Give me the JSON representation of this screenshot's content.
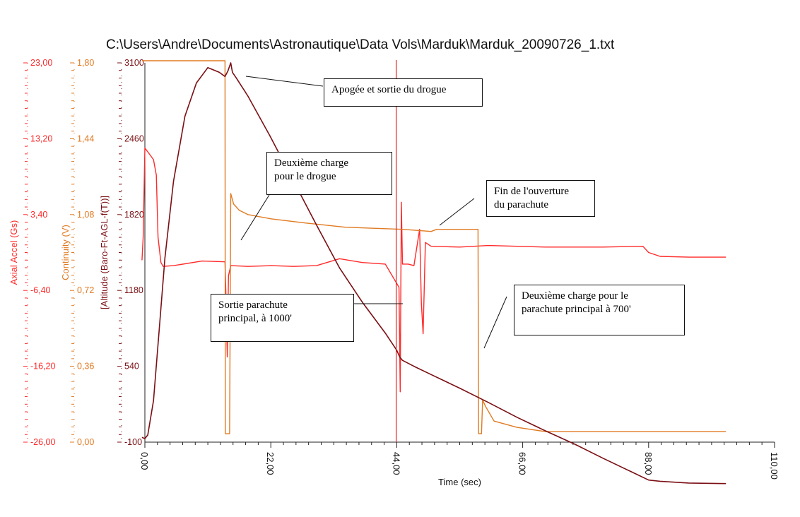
{
  "title": "C:\\Users\\Andre\\Documents\\Astronautique\\Data Vols\\Marduk\\Marduk_20090726_1.txt",
  "chart_data": {
    "type": "line",
    "title": "C:\\Users\\Andre\\Documents\\Astronautique\\Data Vols\\Marduk\\Marduk_20090726_1.txt",
    "xlabel": "Time (sec)",
    "xlim": [
      0,
      110
    ],
    "xticks": [
      "0,00",
      "22,00",
      "44,00",
      "66,00",
      "88,00",
      "110,00"
    ],
    "grid": false,
    "axes": [
      {
        "label": "Axial Accel (Gs)",
        "color": "#ff2a2a",
        "ylim": [
          -26,
          23
        ],
        "ticks": [
          "23,00",
          "13,20",
          "3,40",
          "-6,40",
          "-16,20",
          "-26,00"
        ]
      },
      {
        "label": "Continuity (V)",
        "color": "#e07a22",
        "ylim": [
          0,
          1.8
        ],
        "ticks": [
          "1,80",
          "1,44",
          "1,08",
          "0,72",
          "0,36",
          "0,00"
        ]
      },
      {
        "label": "[Altitude (Baro-Ft-AGL-f(T))]",
        "color": "#7a0f14",
        "ylim": [
          -100,
          3100
        ],
        "ticks": [
          "3100",
          "2460",
          "1820",
          "1180",
          "540",
          "-100"
        ]
      }
    ],
    "series": [
      {
        "name": "Axial Accel (Gs)",
        "axis": 0,
        "color": "#ff2a2a",
        "x": [
          -0.5,
          -0.3,
          0,
          0.5,
          1.5,
          2.0,
          2.3,
          2.8,
          3.2,
          5,
          10,
          14,
          14.2,
          14.4,
          14.6,
          15,
          18,
          22,
          26,
          30,
          34,
          38,
          42,
          44.4,
          44.6,
          44.8,
          45,
          46,
          47,
          48,
          48.3,
          48.6,
          49,
          50,
          55,
          60,
          70,
          80,
          87,
          88,
          90,
          95,
          101.5
        ],
        "y": [
          -2.5,
          0.5,
          12,
          11.5,
          10.5,
          8.5,
          0.5,
          -2.8,
          -3.3,
          -3.2,
          -2.6,
          -2.7,
          -8,
          -15,
          -4.5,
          -3.2,
          -3.3,
          -3.2,
          -3.3,
          -3.2,
          -2.3,
          -2.8,
          -3.0,
          -6,
          -19.5,
          5,
          -3,
          -3.0,
          -3.2,
          1.5,
          -8,
          -12,
          -0.2,
          -0.7,
          -0.8,
          -0.6,
          -0.8,
          -0.8,
          -0.7,
          -1.5,
          -2.0,
          -2.1,
          -2.1
        ]
      },
      {
        "name": "Continuity (V)",
        "axis": 1,
        "color": "#e07a22",
        "x": [
          -0.5,
          0,
          14.0,
          14.05,
          14.8,
          15.0,
          15.5,
          16.5,
          18,
          22,
          28,
          35,
          45,
          50,
          51,
          58.2,
          58.3,
          58.8,
          59,
          59.5,
          61,
          65,
          70,
          80,
          88,
          101.5
        ],
        "y": [
          1.81,
          1.81,
          1.81,
          0.04,
          0.04,
          1.18,
          1.13,
          1.1,
          1.08,
          1.06,
          1.04,
          1.02,
          1.01,
          1.0,
          1.01,
          1.01,
          0.04,
          0.04,
          0.2,
          0.17,
          0.1,
          0.07,
          0.05,
          0.05,
          0.05,
          0.05
        ]
      },
      {
        "name": "[Altitude (Baro-Ft-AGL-f(T))]",
        "axis": 2,
        "color": "#7a0f14",
        "x": [
          -0.5,
          0,
          0.5,
          1.5,
          2.5,
          3.5,
          5,
          7,
          9,
          11,
          13,
          14.0,
          14.5,
          15.0,
          15.3,
          16,
          18,
          22,
          26,
          30,
          34,
          38,
          42,
          44.0,
          44.5,
          45,
          47,
          50,
          55,
          60,
          65,
          70,
          75,
          80,
          85,
          88,
          90,
          95,
          101.5
        ],
        "y": [
          -60,
          -70,
          -40,
          250,
          850,
          1450,
          2100,
          2650,
          2930,
          3060,
          3020,
          2985,
          3030,
          3100,
          3020,
          2970,
          2820,
          2470,
          2100,
          1730,
          1370,
          1080,
          820,
          675,
          620,
          590,
          540,
          470,
          355,
          235,
          110,
          -5,
          -115,
          -235,
          -350,
          -420,
          -430,
          -445,
          -450
        ]
      }
    ],
    "markers": [
      {
        "x": 43.9,
        "color": "#e02020"
      }
    ],
    "annotations": [
      {
        "text_lines": [
          "Apogée et sortie du drogue"
        ],
        "points_to_x": 14.8
      },
      {
        "text_lines": [
          "Deuxième charge",
          "pour le drogue"
        ],
        "points_to_x": 15.0
      },
      {
        "text_lines": [
          "Fin de l'ouverture",
          "du parachute"
        ],
        "points_to_x": 50.8
      },
      {
        "text_lines": [
          "Sortie parachute",
          "principal, à 1000'"
        ],
        "points_to_x": 43.9
      },
      {
        "text_lines": [
          "Deuxième charge pour le",
          "parachute principal à 700'"
        ],
        "points_to_x": 58.4
      }
    ]
  }
}
